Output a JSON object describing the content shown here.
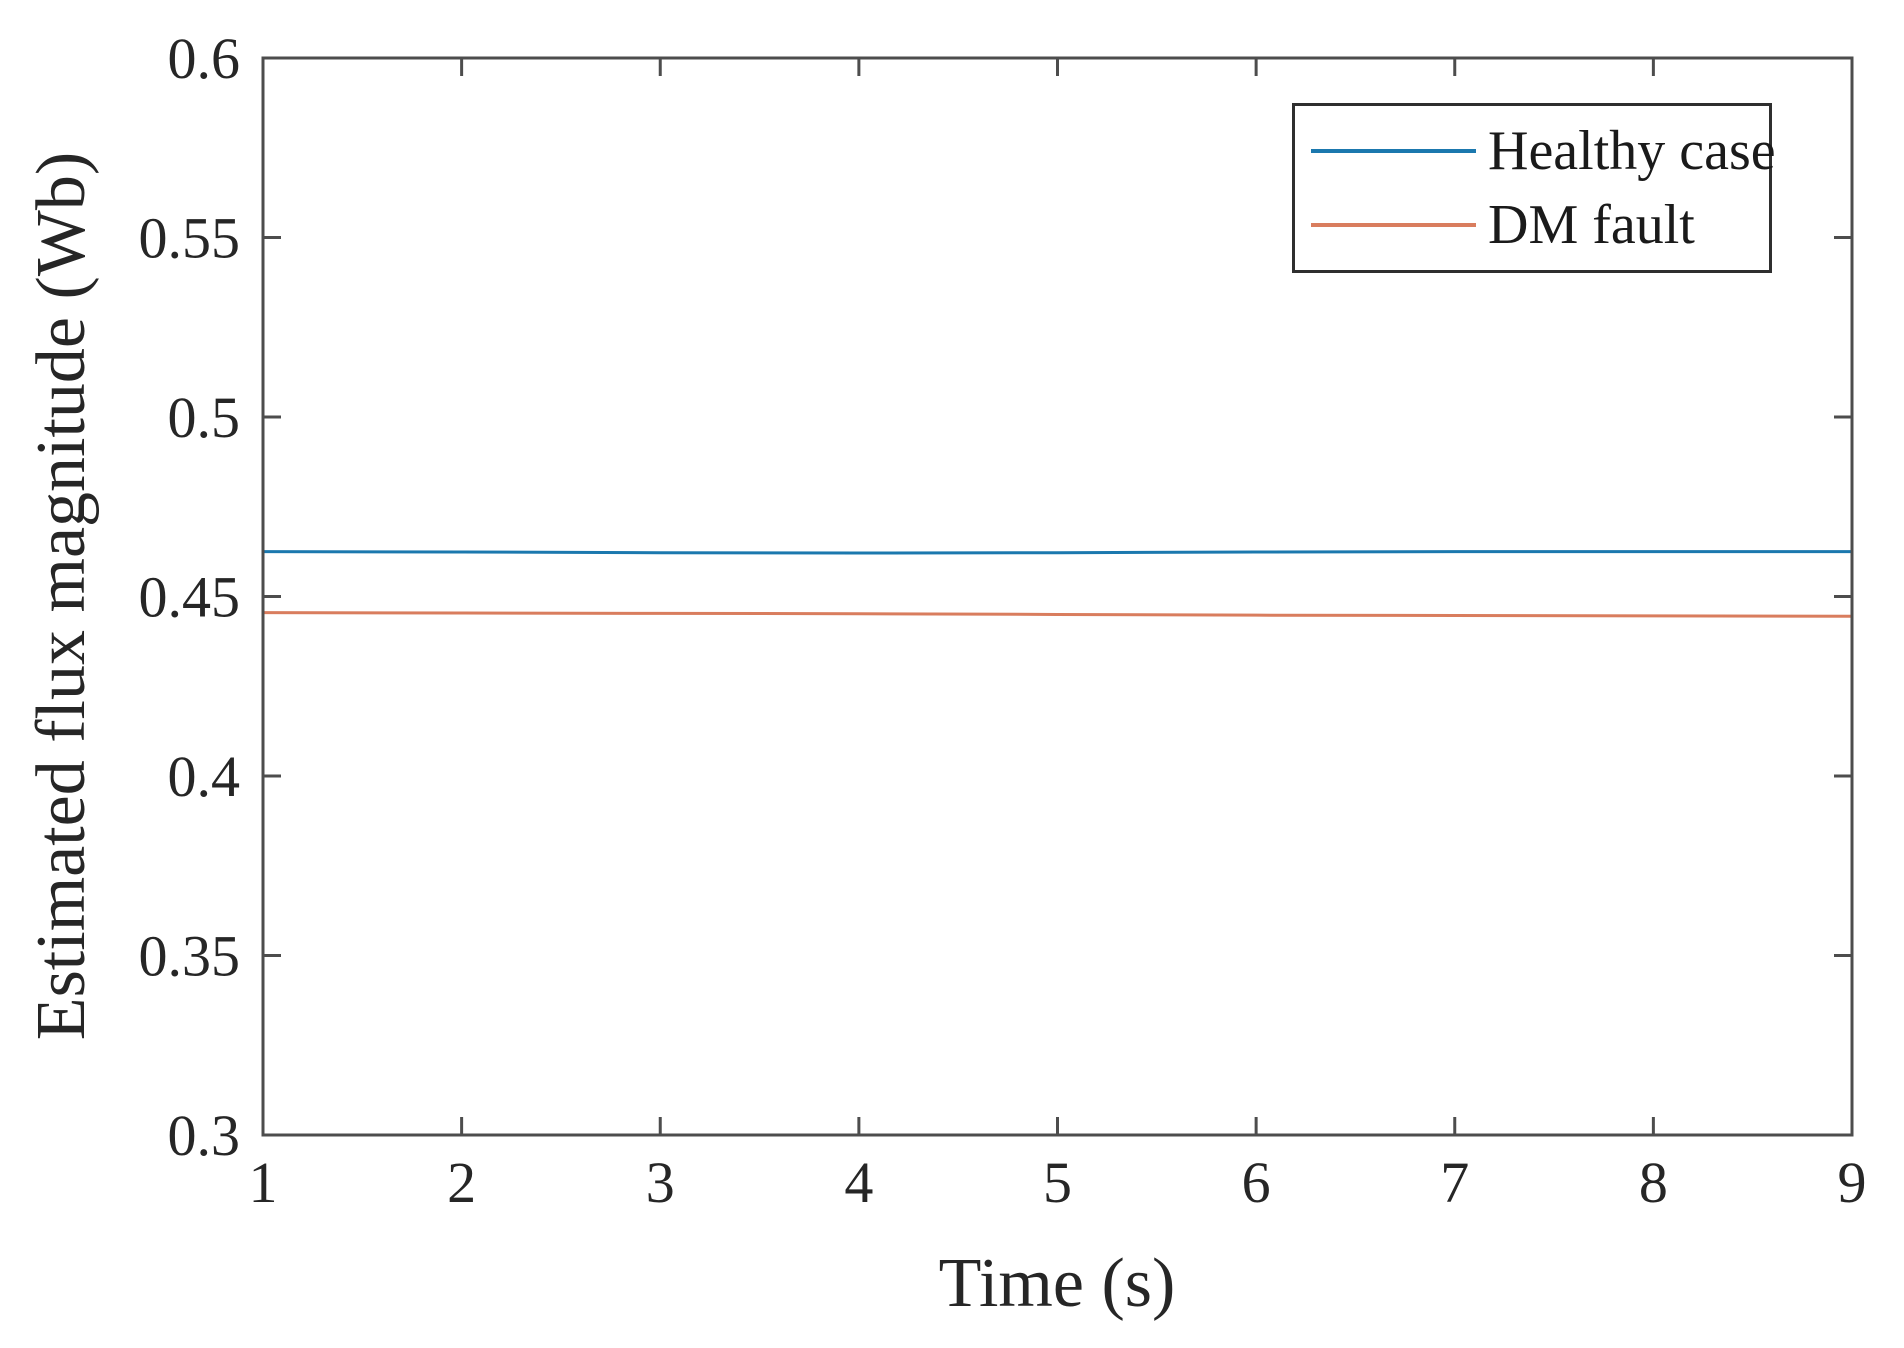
{
  "colors": {
    "background": "#ffffff",
    "axis": "#4d4d4d",
    "tick_label": "#262626",
    "legend_border": "#2f2f2f",
    "legend_text": "#1a1a1a"
  },
  "chart_data": {
    "type": "line",
    "title": "",
    "xlabel": "Time (s)",
    "ylabel": "Estimated flux magnitude (Wb)",
    "xlim": [
      1,
      9
    ],
    "ylim": [
      0.3,
      0.6
    ],
    "grid": false,
    "box": true,
    "tick_direction": "in",
    "legend_position": "top-right",
    "x_ticks": [
      1,
      2,
      3,
      4,
      5,
      6,
      7,
      8,
      9
    ],
    "x_tick_labels": [
      "1",
      "2",
      "3",
      "4",
      "5",
      "6",
      "7",
      "8",
      "9"
    ],
    "y_ticks": [
      0.3,
      0.35,
      0.4,
      0.45,
      0.5,
      0.55,
      0.6
    ],
    "y_tick_labels": [
      "0.3",
      "0.35",
      "0.4",
      "0.45",
      "0.5",
      "0.55",
      "0.6"
    ],
    "series": [
      {
        "name": "Healthy case",
        "color": "#1b78ae",
        "x": [
          1,
          2,
          3,
          4,
          5,
          6,
          7,
          8,
          9
        ],
        "values": [
          0.4625,
          0.4624,
          0.4622,
          0.4621,
          0.4622,
          0.4624,
          0.4625,
          0.4625,
          0.4625
        ]
      },
      {
        "name": "DM fault",
        "color": "#d97d5e",
        "x": [
          1,
          2,
          3,
          4,
          5,
          6,
          7,
          8,
          9
        ],
        "values": [
          0.4455,
          0.4454,
          0.4453,
          0.4452,
          0.445,
          0.4448,
          0.4447,
          0.4446,
          0.4445
        ]
      }
    ]
  }
}
